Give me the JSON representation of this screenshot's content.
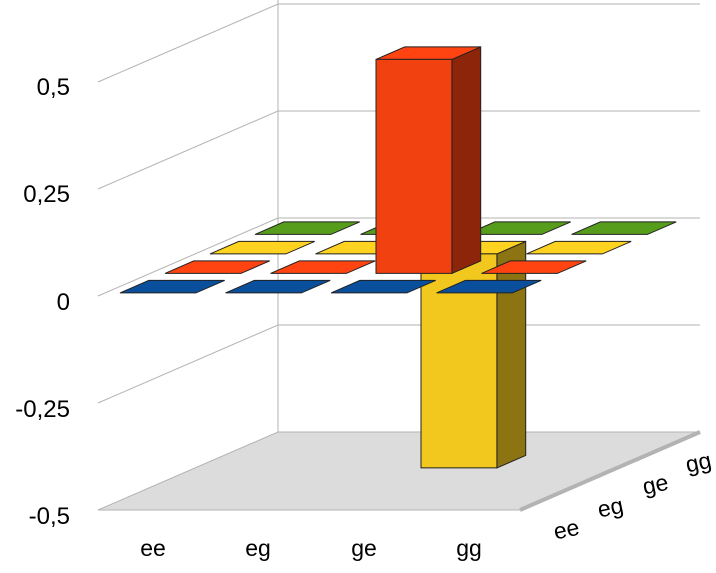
{
  "chart_data": {
    "type": "bar3d",
    "title": "",
    "xlabel": "",
    "ylabel": "",
    "zlabel": "",
    "x_categories": [
      "ee",
      "eg",
      "ge",
      "gg"
    ],
    "depth_categories": [
      "ee",
      "eg",
      "ge",
      "gg"
    ],
    "yticks": [
      "0,5",
      "0,25",
      "0",
      "-0,25",
      "-0,5"
    ],
    "ylim": [
      -0.5,
      0.5
    ],
    "grid": true,
    "legend": "none",
    "series": [
      {
        "depth": "ee",
        "color": "#0a4f9c",
        "values": [
          0,
          0,
          0,
          0
        ]
      },
      {
        "depth": "eg",
        "color": "#ff4412",
        "values": [
          0,
          0,
          0.5,
          0
        ]
      },
      {
        "depth": "ge",
        "color": "#ffd320",
        "values": [
          0,
          0,
          -0.5,
          0
        ]
      },
      {
        "depth": "gg",
        "color": "#579d1c",
        "values": [
          0,
          0,
          0,
          0
        ]
      }
    ]
  }
}
